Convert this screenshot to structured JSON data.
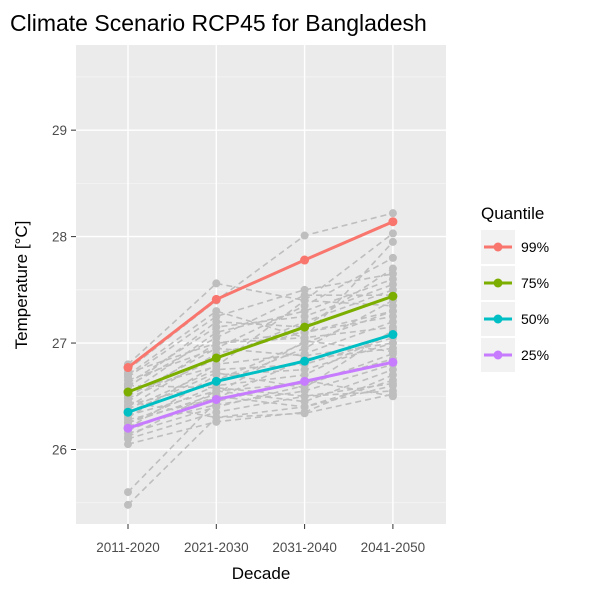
{
  "chart_data": {
    "type": "line",
    "title": "Climate Scenario RCP45 for Bangladesh",
    "xlabel": "Decade",
    "ylabel": "Temperature [°C]",
    "categories": [
      "2011-2020",
      "2021-2030",
      "2031-2040",
      "2041-2050"
    ],
    "ylim": [
      25.3,
      29.8
    ],
    "yticks": [
      26,
      27,
      28,
      29
    ],
    "grid": true,
    "legend": {
      "title": "Quantile",
      "position": "right"
    },
    "series": [
      {
        "name": "99%",
        "color": "#F8766D",
        "values": [
          26.77,
          27.41,
          27.78,
          28.14
        ]
      },
      {
        "name": "75%",
        "color": "#7CAE00",
        "values": [
          26.54,
          26.86,
          27.15,
          27.44
        ]
      },
      {
        "name": "50%",
        "color": "#00BFC4",
        "values": [
          26.35,
          26.64,
          26.83,
          27.08
        ]
      },
      {
        "name": "25%",
        "color": "#C77CFF",
        "values": [
          26.2,
          26.47,
          26.64,
          26.82
        ]
      }
    ],
    "background_models": {
      "color": "#bebebe",
      "style": "dashed",
      "values": [
        [
          25.48,
          26.3,
          26.4,
          26.6
        ],
        [
          25.6,
          26.45,
          26.65,
          26.5
        ],
        [
          26.05,
          26.26,
          26.35,
          26.7
        ],
        [
          26.1,
          26.35,
          26.5,
          26.55
        ],
        [
          26.12,
          26.55,
          26.45,
          26.75
        ],
        [
          26.15,
          26.4,
          26.6,
          26.9
        ],
        [
          26.18,
          26.5,
          26.4,
          26.65
        ],
        [
          26.2,
          26.7,
          26.75,
          27.0
        ],
        [
          26.22,
          26.42,
          26.55,
          26.8
        ],
        [
          26.25,
          26.6,
          26.7,
          27.1
        ],
        [
          26.28,
          26.48,
          26.85,
          26.95
        ],
        [
          26.3,
          26.8,
          26.9,
          27.2
        ],
        [
          26.32,
          26.55,
          26.62,
          26.85
        ],
        [
          26.35,
          26.65,
          27.0,
          27.3
        ],
        [
          26.38,
          26.75,
          26.8,
          27.05
        ],
        [
          26.4,
          26.9,
          27.1,
          27.25
        ],
        [
          26.42,
          26.62,
          26.95,
          27.4
        ],
        [
          26.45,
          27.0,
          27.05,
          27.15
        ],
        [
          26.48,
          26.85,
          27.2,
          27.5
        ],
        [
          26.5,
          26.95,
          26.88,
          27.0
        ],
        [
          26.52,
          27.1,
          27.3,
          27.6
        ],
        [
          26.55,
          26.78,
          27.4,
          27.35
        ],
        [
          26.58,
          27.2,
          27.15,
          27.7
        ],
        [
          26.6,
          27.05,
          27.45,
          27.45
        ],
        [
          26.62,
          27.15,
          27.25,
          27.55
        ],
        [
          26.65,
          26.95,
          27.35,
          27.8
        ],
        [
          26.68,
          27.25,
          27.5,
          27.65
        ],
        [
          26.7,
          27.3,
          27.05,
          27.95
        ],
        [
          26.72,
          27.0,
          27.1,
          27.3
        ],
        [
          26.75,
          27.4,
          28.01,
          28.22
        ],
        [
          26.8,
          27.56,
          27.4,
          28.03
        ],
        [
          26.6,
          26.58,
          26.5,
          26.62
        ],
        [
          26.45,
          26.3,
          26.34,
          26.52
        ],
        [
          26.35,
          26.72,
          26.58,
          27.12
        ],
        [
          26.25,
          26.52,
          27.02,
          26.92
        ]
      ]
    }
  }
}
